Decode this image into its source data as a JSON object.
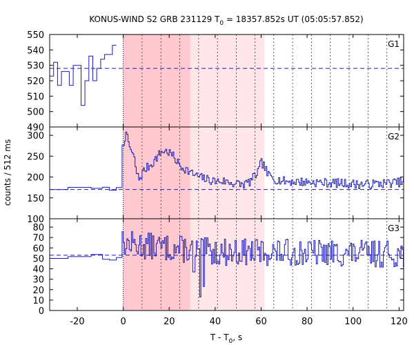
{
  "chart_data": {
    "type": "line",
    "title_main": "KONUS-WIND S2 GRB 231129 T",
    "title_sub": "0",
    "title_rest": " = 18357.852s UT (05:05:57.852)",
    "xlabel_main": "T - T",
    "xlabel_sub": "0",
    "xlabel_rest": ", s",
    "ylabel": "counts / 512 ms",
    "xlim": [
      -32,
      122
    ],
    "x_ticks": [
      -20,
      0,
      20,
      40,
      60,
      80,
      100,
      120
    ],
    "x_tick_labels": [
      "-20",
      "0",
      "20",
      "40",
      "60",
      "80",
      "100",
      "120"
    ],
    "zero_line_x": 0,
    "shaded_intervals": [
      {
        "from": 0.0,
        "to": 29.2,
        "level": "dark"
      },
      {
        "from": 29.2,
        "to": 61.4,
        "level": "light"
      }
    ],
    "vertical_dotted_lines": [
      8.2,
      16.4,
      24.6,
      32.8,
      41.0,
      49.2,
      57.3,
      65.5,
      73.7,
      81.9,
      90.1,
      98.3,
      106.5,
      114.7
    ],
    "panels": [
      {
        "name": "G1",
        "ylim": [
          490,
          550
        ],
        "yticks": [
          490,
          500,
          510,
          520,
          530,
          540,
          550
        ],
        "ytick_labels": [
          "490",
          "500",
          "510",
          "520",
          "530",
          "540",
          "550"
        ],
        "background": 528,
        "stop_x": -3,
        "x_start": -32,
        "seed": 1,
        "counts": [
          523,
          532,
          517,
          526,
          526,
          517,
          530,
          530,
          504,
          520,
          536,
          520,
          528,
          534,
          537,
          537,
          543
        ]
      },
      {
        "name": "G2",
        "ylim": [
          100,
          320
        ],
        "yticks": [
          100,
          150,
          200,
          250,
          300
        ],
        "ytick_labels": [
          "100",
          "150",
          "200",
          "250",
          "300"
        ],
        "background": 170,
        "seed": 7,
        "pre_level": 172,
        "pre_noise": 4,
        "anchors": [
          [
            0,
            280
          ],
          [
            1,
            300
          ],
          [
            2,
            290
          ],
          [
            3,
            270
          ],
          [
            5,
            240
          ],
          [
            6,
            205
          ],
          [
            7,
            195
          ],
          [
            9,
            215
          ],
          [
            11,
            225
          ],
          [
            13,
            235
          ],
          [
            15,
            250
          ],
          [
            17,
            262
          ],
          [
            19,
            262
          ],
          [
            21,
            255
          ],
          [
            23,
            240
          ],
          [
            25,
            225
          ],
          [
            27,
            220
          ],
          [
            30,
            208
          ],
          [
            33,
            200
          ],
          [
            36,
            195
          ],
          [
            40,
            190
          ],
          [
            44,
            190
          ],
          [
            48,
            185
          ],
          [
            52,
            182
          ],
          [
            55,
            188
          ],
          [
            57,
            200
          ],
          [
            59,
            215
          ],
          [
            60,
            235
          ],
          [
            61,
            230
          ],
          [
            63,
            205
          ],
          [
            66,
            195
          ],
          [
            70,
            190
          ],
          [
            80,
            188
          ],
          [
            95,
            185
          ],
          [
            105,
            182
          ],
          [
            122,
            188
          ]
        ],
        "noise": 11
      },
      {
        "name": "G3",
        "ylim": [
          0,
          88
        ],
        "yticks": [
          0,
          10,
          20,
          30,
          40,
          50,
          60,
          70,
          80
        ],
        "ytick_labels": [
          "0",
          "10",
          "20",
          "30",
          "40",
          "50",
          "60",
          "70",
          "80"
        ],
        "background": 53,
        "seed": 13,
        "pre_level": 52,
        "pre_noise": 4,
        "anchors": [
          [
            0,
            64
          ],
          [
            20,
            60
          ],
          [
            40,
            56
          ],
          [
            60,
            56
          ],
          [
            122,
            54
          ]
        ],
        "noise": 13,
        "dips": [
          [
            33.2,
            13
          ],
          [
            34.8,
            23
          ],
          [
            30.5,
            37
          ]
        ]
      }
    ]
  }
}
